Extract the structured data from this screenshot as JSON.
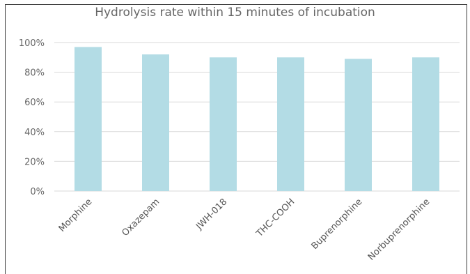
{
  "chart_data": {
    "type": "bar",
    "title": "Hydrolysis rate within  15 minutes of incubation",
    "categories": [
      "Morphine",
      "Oxazepam",
      "JWH-018",
      "THC-COOH",
      "Buprenorphine",
      "Norbuprenorphine"
    ],
    "values": [
      97,
      92,
      90,
      90,
      89,
      90
    ],
    "ylim": [
      0,
      100
    ],
    "yticks": [
      "0%",
      "20%",
      "40%",
      "60%",
      "80%",
      "100%"
    ],
    "grid": true,
    "bar_color": "#b3dce5",
    "grid_color": "#d9d9d9"
  }
}
